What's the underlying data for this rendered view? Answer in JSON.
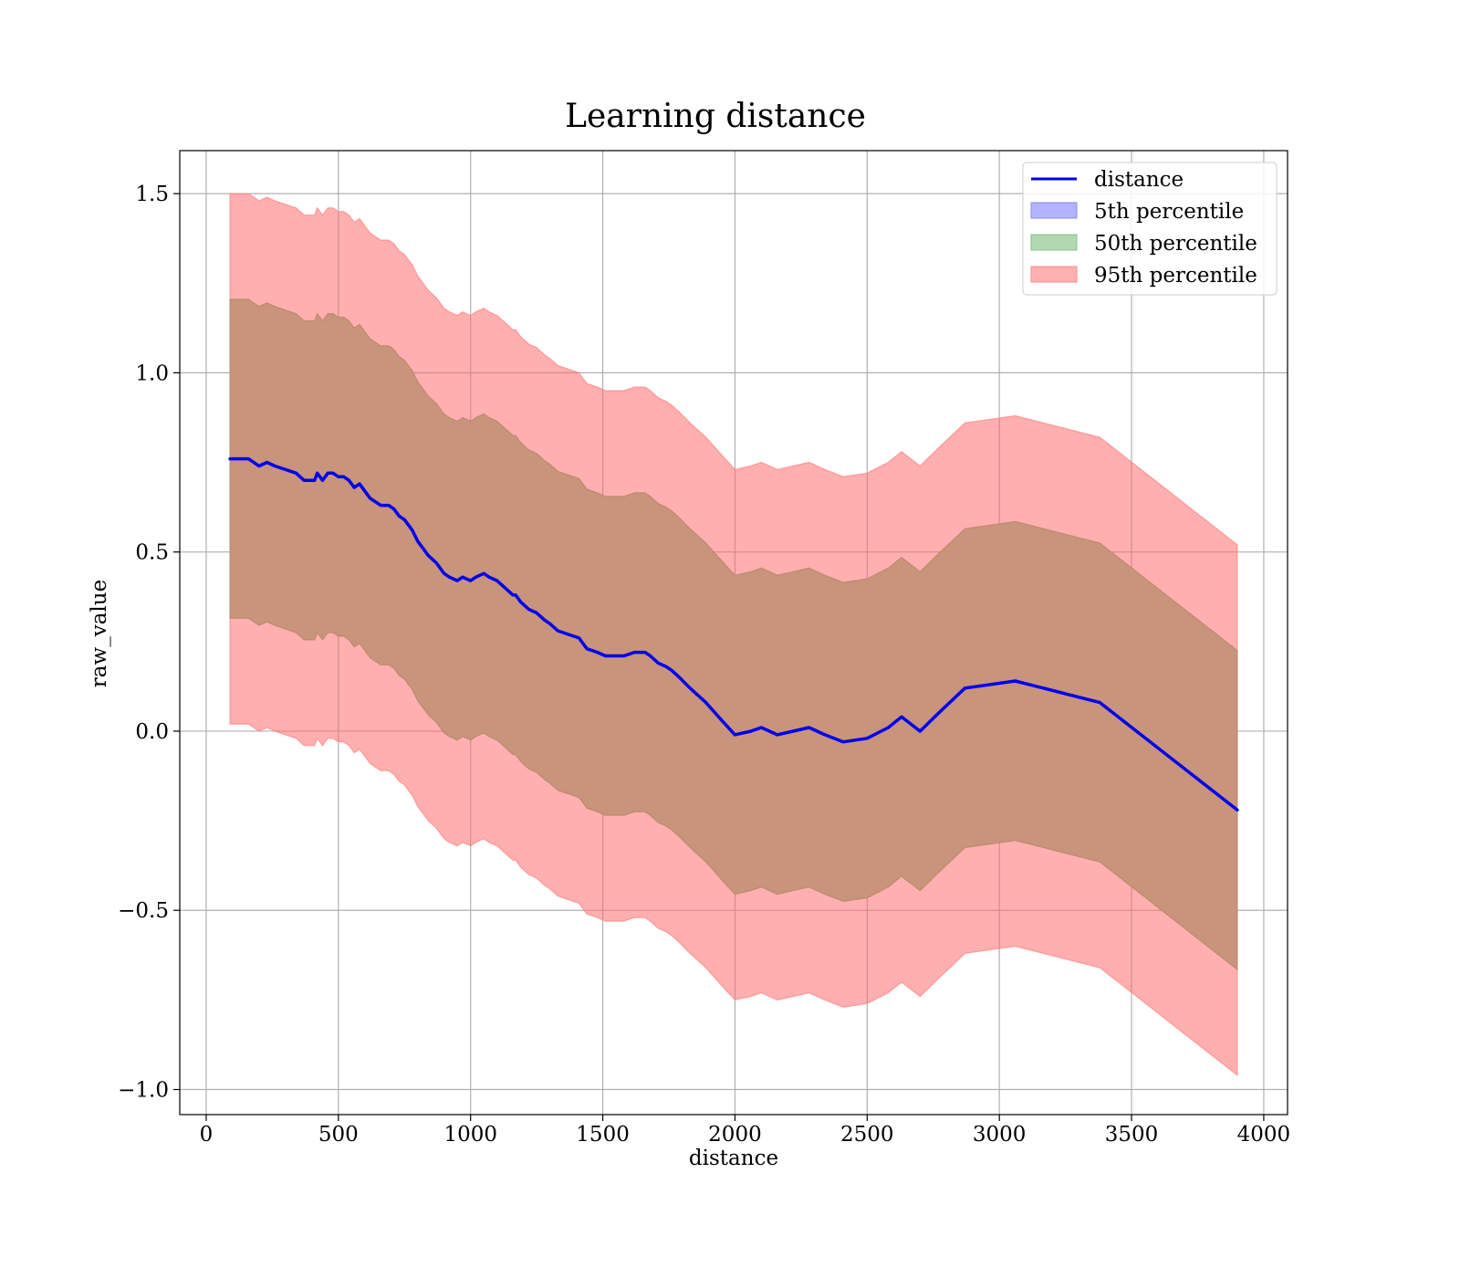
{
  "chart_data": {
    "type": "line",
    "title": "Learning distance",
    "xlabel": "distance",
    "ylabel": "raw_value",
    "xlim": [
      -100,
      4090
    ],
    "ylim": [
      -1.07,
      1.62
    ],
    "xticks": [
      0,
      500,
      1000,
      1500,
      2000,
      2500,
      3000,
      3500,
      4000
    ],
    "xtick_labels": [
      "0",
      "500",
      "1000",
      "1500",
      "2000",
      "2500",
      "3000",
      "3500",
      "4000"
    ],
    "yticks": [
      -1.0,
      -0.5,
      0.0,
      0.5,
      1.0,
      1.5
    ],
    "ytick_labels": [
      "−1.0",
      "−0.5",
      "0.0",
      "0.5",
      "1.0",
      "1.5"
    ],
    "grid": true,
    "legend_position": "top-right",
    "colors": {
      "line": "#0000ee",
      "p5": "#7777ff",
      "p50": "#2ca02c",
      "p95": "#ff6666",
      "overlap": "#c8947b",
      "grid": "#b0b0b0",
      "axis": "#000000"
    },
    "legend": [
      {
        "label": "distance",
        "kind": "line",
        "color": "#0000ee"
      },
      {
        "label": "5th percentile",
        "kind": "patch",
        "color": "#b3b3ff",
        "edge": "#8888ff"
      },
      {
        "label": "50th percentile",
        "kind": "patch",
        "color": "#b2d8b2",
        "edge": "#88c088"
      },
      {
        "label": "95th percentile",
        "kind": "patch",
        "color": "#ffb0b0",
        "edge": "#ff8888"
      }
    ],
    "series": [
      {
        "name": "distance",
        "x": [
          90,
          160,
          200,
          230,
          260,
          300,
          340,
          370,
          410,
          420,
          440,
          460,
          480,
          500,
          520,
          540,
          560,
          580,
          600,
          620,
          640,
          660,
          690,
          710,
          730,
          750,
          780,
          800,
          820,
          840,
          870,
          900,
          920,
          950,
          970,
          1000,
          1020,
          1050,
          1070,
          1100,
          1130,
          1160,
          1170,
          1190,
          1220,
          1250,
          1280,
          1300,
          1330,
          1370,
          1410,
          1440,
          1480,
          1510,
          1550,
          1580,
          1620,
          1660,
          1680,
          1710,
          1740,
          1760,
          1790,
          1830,
          1890,
          1950,
          2000,
          2060,
          2100,
          2160,
          2220,
          2280,
          2340,
          2410,
          2500,
          2580,
          2630,
          2700,
          2770,
          2870,
          3060,
          3380,
          3900
        ],
        "y": [
          0.76,
          0.76,
          0.74,
          0.75,
          0.74,
          0.73,
          0.72,
          0.7,
          0.7,
          0.72,
          0.7,
          0.72,
          0.72,
          0.71,
          0.71,
          0.7,
          0.68,
          0.69,
          0.67,
          0.65,
          0.64,
          0.63,
          0.63,
          0.62,
          0.6,
          0.59,
          0.56,
          0.53,
          0.51,
          0.49,
          0.47,
          0.44,
          0.43,
          0.42,
          0.43,
          0.42,
          0.43,
          0.44,
          0.43,
          0.42,
          0.4,
          0.38,
          0.38,
          0.36,
          0.34,
          0.33,
          0.31,
          0.3,
          0.28,
          0.27,
          0.26,
          0.23,
          0.22,
          0.21,
          0.21,
          0.21,
          0.22,
          0.22,
          0.21,
          0.19,
          0.18,
          0.17,
          0.15,
          0.12,
          0.08,
          0.03,
          -0.01,
          0.0,
          0.01,
          -0.01,
          0.0,
          0.01,
          -0.01,
          -0.03,
          -0.02,
          0.01,
          0.04,
          0.0,
          0.05,
          0.12,
          0.14,
          0.08,
          -0.22
        ]
      },
      {
        "name": "5th percentile",
        "band_halfwidth": 0.445
      },
      {
        "name": "50th percentile",
        "band_halfwidth": 0.445
      },
      {
        "name": "95th percentile",
        "band_halfwidth": 0.74
      }
    ]
  }
}
